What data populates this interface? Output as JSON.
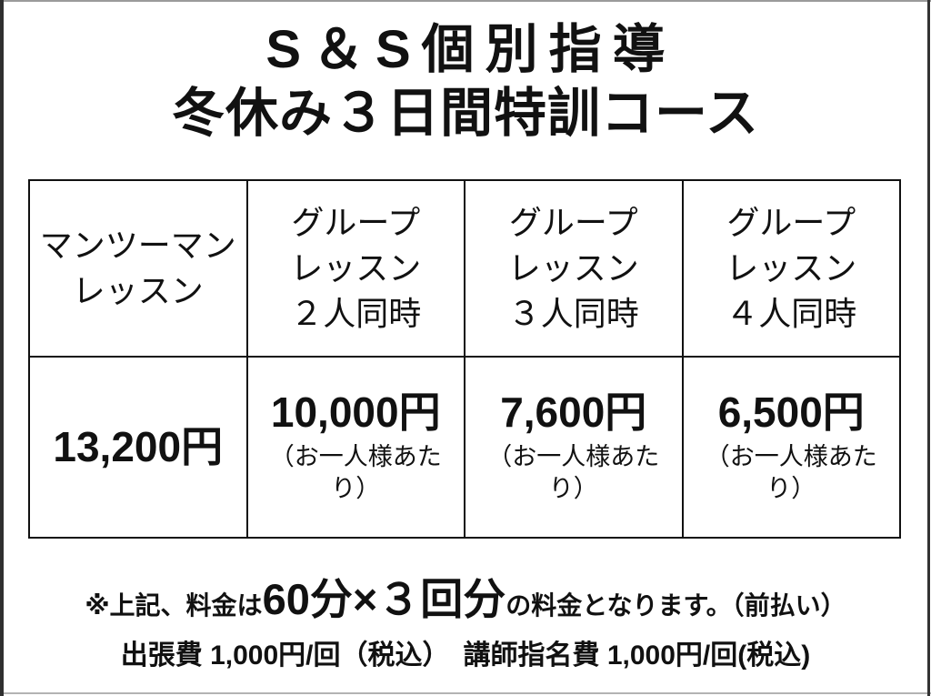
{
  "page": {
    "background_color": "#ffffff",
    "text_color": "#111111"
  },
  "title": {
    "line1": "S＆S個別指導",
    "line2": "冬休み３日間特訓コース"
  },
  "table": {
    "columns": [
      {
        "header": "マンツーマン\nレッスン",
        "price": "13,200円",
        "note": ""
      },
      {
        "header": "グループ\nレッスン\n２人同時",
        "price": "10,000円",
        "note": "（お一人様あたり）"
      },
      {
        "header": "グループ\nレッスン\n３人同時",
        "price": "7,600円",
        "note": "（お一人様あたり）"
      },
      {
        "header": "グループ\nレッスン\n４人同時",
        "price": "6,500円",
        "note": "（お一人様あたり）"
      }
    ]
  },
  "notes": {
    "fee_prefix": "※上記、料金は",
    "fee_highlight": "60分×３回分",
    "fee_suffix": "の料金となります。（前払い）",
    "extra_fees": "出張費 1,000円/回（税込）　講師指名費 1,000円/回(税込)"
  }
}
